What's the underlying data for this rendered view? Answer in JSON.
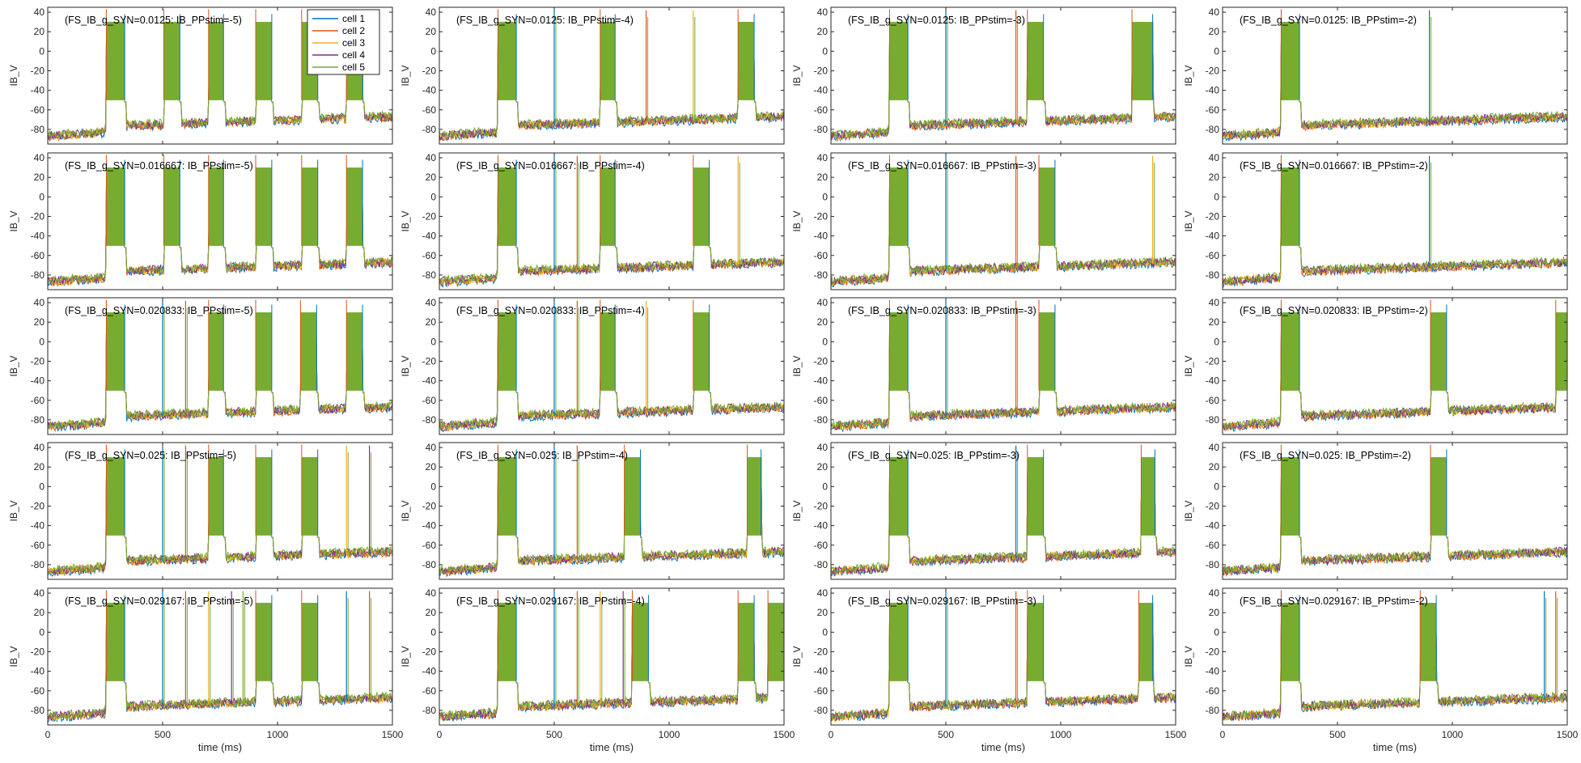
{
  "chart_data": {
    "type": "line",
    "layout": {
      "rows": 5,
      "cols": 4
    },
    "xlabel": "time (ms)",
    "ylabel": "IB_V",
    "xlim": [
      0,
      1500
    ],
    "ylim": [
      -95,
      45
    ],
    "xticks": [
      0,
      500,
      1000,
      1500
    ],
    "yticks": [
      -80,
      -60,
      -40,
      -20,
      0,
      20,
      40
    ],
    "grid": false,
    "legend": {
      "location": "top-right",
      "entries": [
        "cell 1",
        "cell 2",
        "cell 3",
        "cell 4",
        "cell 5"
      ]
    },
    "series_colors": [
      "#0072BD",
      "#D95319",
      "#EDB120",
      "#7E2F8E",
      "#77AC30"
    ],
    "bursts": {
      "top": 30,
      "bottom": -50,
      "fill_color": "#77AC30"
    },
    "row_g_syn": [
      "0.0125",
      "0.016667",
      "0.020833",
      "0.025",
      "0.029167"
    ],
    "col_ppstim": [
      "-5",
      "-4",
      "-3",
      "-2"
    ],
    "panels": [
      {
        "title": "(FS_IB_g_SYN=0.0125: IB_PPstim=-5)",
        "bursts": [
          [
            255,
            335
          ],
          [
            505,
            575
          ],
          [
            700,
            765
          ],
          [
            905,
            975
          ],
          [
            1105,
            1175
          ],
          [
            1300,
            1370
          ]
        ],
        "spikes": []
      },
      {
        "title": "(FS_IB_g_SYN=0.0125: IB_PPstim=-4)",
        "bursts": [
          [
            255,
            335
          ],
          [
            700,
            765
          ],
          [
            1300,
            1370
          ]
        ],
        "spikes": [
          500,
          900,
          1105
        ]
      },
      {
        "title": "(FS_IB_g_SYN=0.0125: IB_PPstim=-3)",
        "bursts": [
          [
            255,
            335
          ],
          [
            855,
            925
          ],
          [
            1310,
            1400
          ]
        ],
        "spikes": [
          500,
          805
        ]
      },
      {
        "title": "(FS_IB_g_SYN=0.0125: IB_PPstim=-2)",
        "bursts": [
          [
            255,
            335
          ]
        ],
        "spikes": [
          900
        ]
      },
      {
        "title": "(FS_IB_g_SYN=0.016667: IB_PPstim=-5)",
        "bursts": [
          [
            255,
            335
          ],
          [
            505,
            575
          ],
          [
            700,
            765
          ],
          [
            905,
            975
          ],
          [
            1105,
            1175
          ],
          [
            1300,
            1370
          ]
        ],
        "spikes": []
      },
      {
        "title": "(FS_IB_g_SYN=0.016667: IB_PPstim=-4)",
        "bursts": [
          [
            255,
            335
          ],
          [
            700,
            765
          ],
          [
            1105,
            1175
          ]
        ],
        "spikes": [
          500,
          600,
          1300
        ]
      },
      {
        "title": "(FS_IB_g_SYN=0.016667: IB_PPstim=-3)",
        "bursts": [
          [
            255,
            335
          ],
          [
            905,
            975
          ]
        ],
        "spikes": [
          500,
          805,
          1400
        ]
      },
      {
        "title": "(FS_IB_g_SYN=0.016667: IB_PPstim=-2)",
        "bursts": [
          [
            255,
            335
          ]
        ],
        "spikes": [
          900
        ]
      },
      {
        "title": "(FS_IB_g_SYN=0.020833: IB_PPstim=-5)",
        "bursts": [
          [
            255,
            335
          ],
          [
            700,
            765
          ],
          [
            905,
            975
          ],
          [
            1100,
            1170
          ],
          [
            1300,
            1370
          ]
        ],
        "spikes": [
          500,
          600
        ]
      },
      {
        "title": "(FS_IB_g_SYN=0.020833: IB_PPstim=-4)",
        "bursts": [
          [
            255,
            335
          ],
          [
            700,
            765
          ],
          [
            1105,
            1175
          ]
        ],
        "spikes": [
          500,
          600,
          900
        ]
      },
      {
        "title": "(FS_IB_g_SYN=0.020833: IB_PPstim=-3)",
        "bursts": [
          [
            255,
            335
          ],
          [
            905,
            975
          ]
        ],
        "spikes": [
          500,
          805
        ]
      },
      {
        "title": "(FS_IB_g_SYN=0.020833: IB_PPstim=-2)",
        "bursts": [
          [
            255,
            335
          ],
          [
            905,
            975
          ],
          [
            1450,
            1500
          ]
        ],
        "spikes": []
      },
      {
        "title": "(FS_IB_g_SYN=0.025: IB_PPstim=-5)",
        "bursts": [
          [
            255,
            335
          ],
          [
            700,
            765
          ],
          [
            905,
            975
          ],
          [
            1105,
            1175
          ]
        ],
        "spikes": [
          500,
          600,
          1300,
          1400
        ]
      },
      {
        "title": "(FS_IB_g_SYN=0.025: IB_PPstim=-4)",
        "bursts": [
          [
            255,
            335
          ],
          [
            805,
            875
          ],
          [
            1340,
            1400
          ]
        ],
        "spikes": [
          500,
          600
        ]
      },
      {
        "title": "(FS_IB_g_SYN=0.025: IB_PPstim=-3)",
        "bursts": [
          [
            255,
            335
          ],
          [
            855,
            925
          ],
          [
            1350,
            1410
          ]
        ],
        "spikes": [
          805
        ]
      },
      {
        "title": "(FS_IB_g_SYN=0.025: IB_PPstim=-2)",
        "bursts": [
          [
            255,
            335
          ],
          [
            905,
            975
          ]
        ],
        "spikes": []
      },
      {
        "title": "(FS_IB_g_SYN=0.029167: IB_PPstim=-5)",
        "bursts": [
          [
            255,
            335
          ],
          [
            905,
            975
          ],
          [
            1105,
            1175
          ]
        ],
        "spikes": [
          500,
          600,
          700,
          800,
          850,
          1300,
          1400
        ]
      },
      {
        "title": "(FS_IB_g_SYN=0.029167: IB_PPstim=-4)",
        "bursts": [
          [
            255,
            335
          ],
          [
            840,
            910
          ],
          [
            1300,
            1370
          ],
          [
            1430,
            1500
          ]
        ],
        "spikes": [
          500,
          600,
          700,
          800
        ]
      },
      {
        "title": "(FS_IB_g_SYN=0.029167: IB_PPstim=-3)",
        "bursts": [
          [
            255,
            335
          ],
          [
            855,
            925
          ],
          [
            1340,
            1400
          ]
        ],
        "spikes": [
          500,
          805
        ]
      },
      {
        "title": "(FS_IB_g_SYN=0.029167: IB_PPstim=-2)",
        "bursts": [
          [
            255,
            335
          ],
          [
            860,
            930
          ]
        ],
        "spikes": [
          1400,
          1450
        ]
      }
    ]
  }
}
